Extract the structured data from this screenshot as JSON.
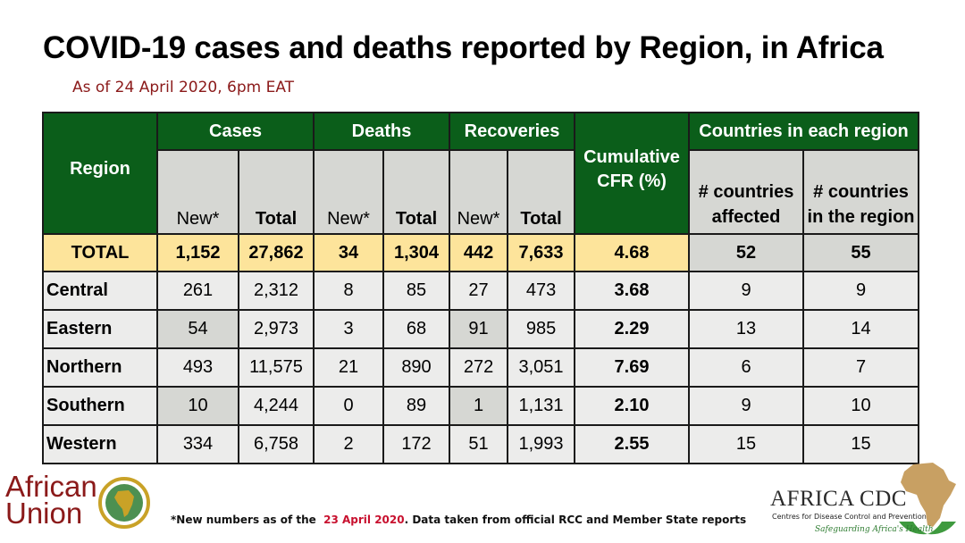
{
  "title": "COVID-19 cases and deaths reported by Region, in Africa",
  "subtitle": "As of 24 April 2020, 6pm EAT",
  "table": {
    "headers": {
      "region": "Region",
      "cases": "Cases",
      "deaths": "Deaths",
      "recoveries": "Recoveries",
      "cfr": "Cumulative CFR (%)",
      "countries": "Countries in each region",
      "new": "New*",
      "total": "Total",
      "affected": "# countries affected",
      "in_region": "# countries in the region"
    },
    "total_row": {
      "label": "TOTAL",
      "cases_new": "1,152",
      "cases_total": "27,862",
      "deaths_new": "34",
      "deaths_total": "1,304",
      "rec_new": "442",
      "rec_total": "7,633",
      "cfr": "4.68",
      "affected": "52",
      "in_region": "55"
    },
    "rows": [
      {
        "region": "Central",
        "cases_new": "261",
        "cases_total": "2,312",
        "deaths_new": "8",
        "deaths_total": "85",
        "rec_new": "27",
        "rec_total": "473",
        "cfr": "3.68",
        "affected": "9",
        "in_region": "9"
      },
      {
        "region": "Eastern",
        "cases_new": "54",
        "cases_total": "2,973",
        "deaths_new": "3",
        "deaths_total": "68",
        "rec_new": "91",
        "rec_total": "985",
        "cfr": "2.29",
        "affected": "13",
        "in_region": "14"
      },
      {
        "region": "Northern",
        "cases_new": "493",
        "cases_total": "11,575",
        "deaths_new": "21",
        "deaths_total": "890",
        "rec_new": "272",
        "rec_total": "3,051",
        "cfr": "7.69",
        "affected": "6",
        "in_region": "7"
      },
      {
        "region": "Southern",
        "cases_new": "10",
        "cases_total": "4,244",
        "deaths_new": "0",
        "deaths_total": "89",
        "rec_new": "1",
        "rec_total": "1,131",
        "cfr": "2.10",
        "affected": "9",
        "in_region": "10"
      },
      {
        "region": "Western",
        "cases_new": "334",
        "cases_total": "6,758",
        "deaths_new": "2",
        "deaths_total": "172",
        "rec_new": "51",
        "rec_total": "1,993",
        "cfr": "2.55",
        "affected": "15",
        "in_region": "15"
      }
    ]
  },
  "footnote": {
    "prefix": "*New numbers as of the",
    "date": "23 April 2020",
    "suffix": ". Data taken from official RCC and Member State reports"
  },
  "logos": {
    "au_line1": "African",
    "au_line2": "Union",
    "cdc_title": "AFRICA CDC",
    "cdc_sub": "Centres for Disease Control and Prevention",
    "cdc_tag": "Safeguarding Africa's Health"
  },
  "colors": {
    "header_green": "#0b5e1a",
    "total_yellow": "#fde49b",
    "gray": "#d6d7d3",
    "light": "#ececeb",
    "subtitle_red": "#8b1a1a",
    "footnote_red": "#c8102e"
  }
}
